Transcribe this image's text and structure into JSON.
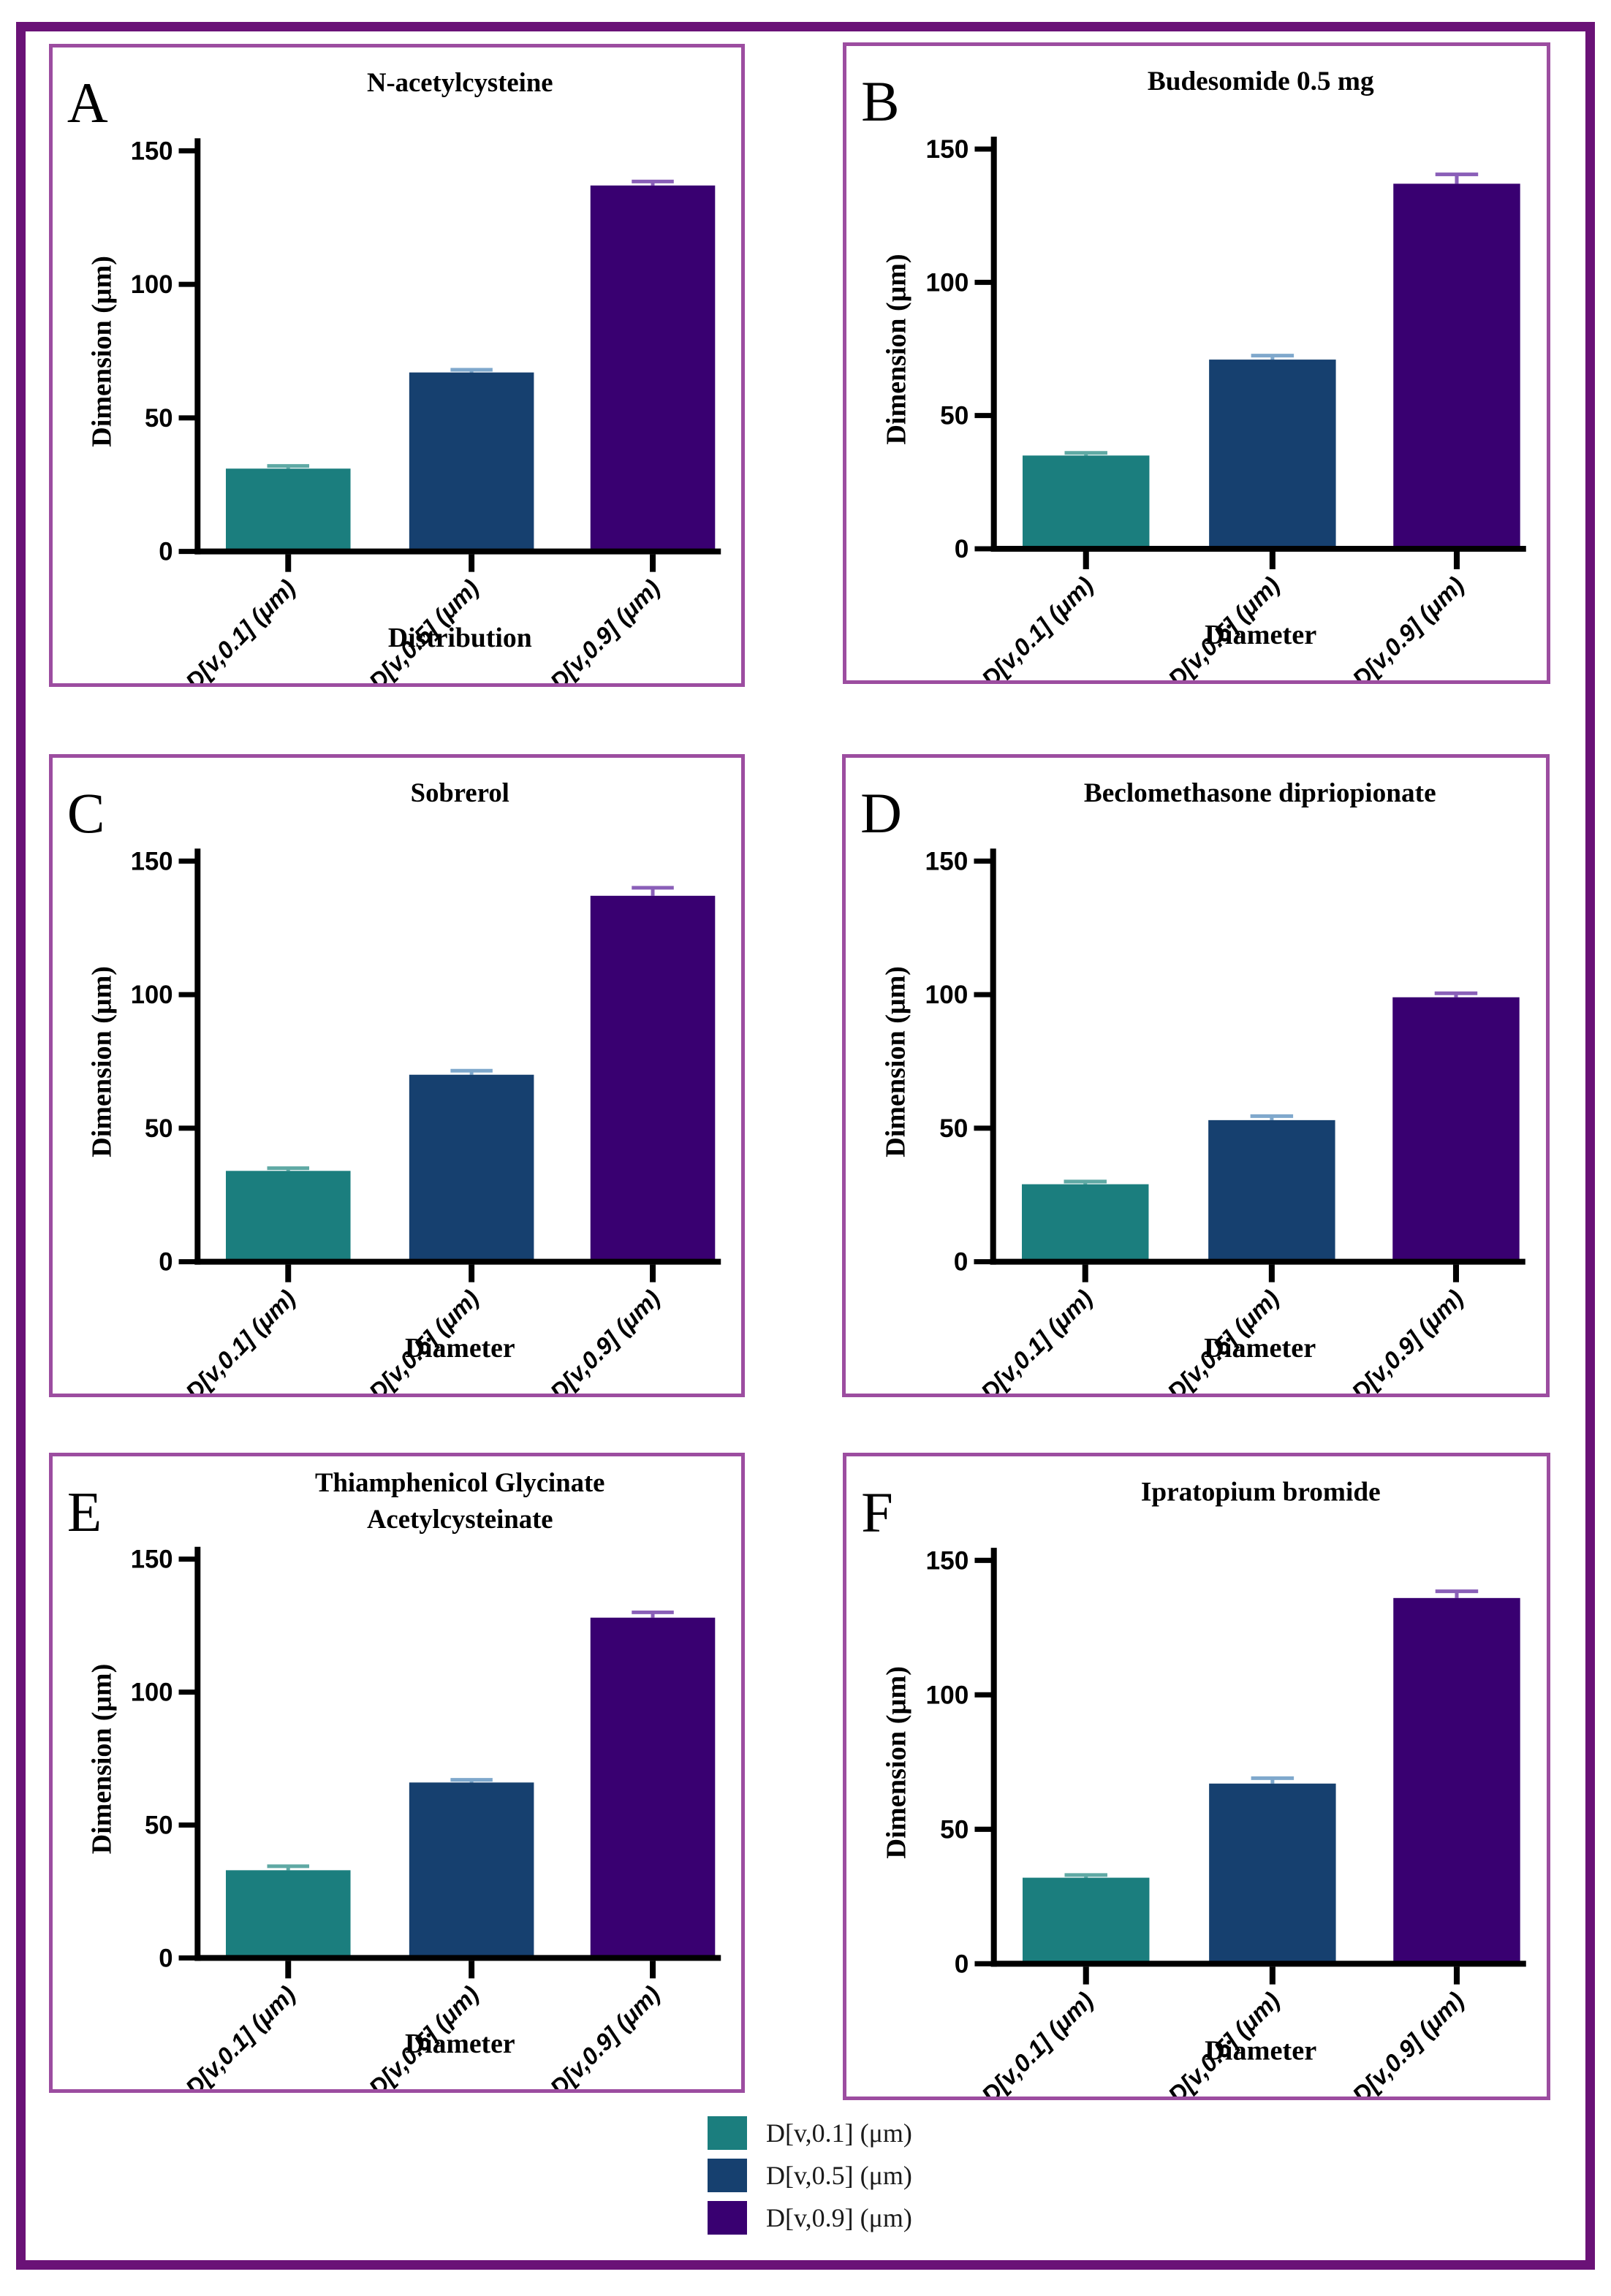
{
  "colors": {
    "outer_border": "#6a1277",
    "panel_border": "#9c4da0",
    "axis": "#000000",
    "teal": "#1b7e7e",
    "navy": "#16406f",
    "purple": "#390071",
    "teal_error": "#5fa9a4",
    "navy_error": "#7fa8cc",
    "purple_error": "#8a5fb8"
  },
  "series": [
    {
      "name": "D[v,0.1] (μm)",
      "color": "#1b7e7e",
      "error_color": "#5fa9a4"
    },
    {
      "name": "D[v,0.5] (μm)",
      "color": "#16406f",
      "error_color": "#7fa8cc"
    },
    {
      "name": "D[v,0.9] (μm)",
      "color": "#390071",
      "error_color": "#8a5fb8"
    }
  ],
  "legend": {
    "items": [
      {
        "label": "D[v,0.1] (μm)",
        "color": "#1b7e7e"
      },
      {
        "label": "D[v,0.5] (μm)",
        "color": "#16406f"
      },
      {
        "label": "D[v,0.9] (μm)",
        "color": "#390071"
      }
    ]
  },
  "chart_data": [
    {
      "type": "bar",
      "panel_letter": "A",
      "title": "N-acetylcysteine",
      "title_lines": [
        "N-acetylcysteine"
      ],
      "xlabel": "Distribution",
      "ylabel": "Dimension (μm)",
      "ylim": [
        0,
        150
      ],
      "yticks": [
        0,
        50,
        100,
        150
      ],
      "categories": [
        "D[v,0.1] (μm)",
        "D[v,0.5] (μm)",
        "D[v,0.9] (μm)"
      ],
      "values": [
        31,
        67,
        137
      ],
      "errors": [
        1,
        1,
        1.5
      ]
    },
    {
      "type": "bar",
      "panel_letter": "B",
      "title": "Budesomide 0.5 mg",
      "title_lines": [
        "Budesomide 0.5 mg"
      ],
      "xlabel": "Diameter",
      "ylabel": "Dimension (μm)",
      "ylim": [
        0,
        150
      ],
      "yticks": [
        0,
        50,
        100,
        150
      ],
      "categories": [
        "D[v,0.1] (μm)",
        "D[v,0.5] (μm)",
        "D[v,0.9] (μm)"
      ],
      "values": [
        35,
        71,
        137
      ],
      "errors": [
        1,
        1.5,
        3.5
      ]
    },
    {
      "type": "bar",
      "panel_letter": "C",
      "title": "Sobrerol",
      "title_lines": [
        "Sobrerol"
      ],
      "xlabel": "Diameter",
      "ylabel": "Dimension (μm)",
      "ylim": [
        0,
        150
      ],
      "yticks": [
        0,
        50,
        100,
        150
      ],
      "categories": [
        "D[v,0.1] (μm)",
        "D[v,0.5] (μm)",
        "D[v,0.9] (μm)"
      ],
      "values": [
        34,
        70,
        137
      ],
      "errors": [
        1,
        1.5,
        3
      ]
    },
    {
      "type": "bar",
      "panel_letter": "D",
      "title": "Beclomethasone dipriopionate",
      "title_lines": [
        "Beclomethasone dipriopionate"
      ],
      "xlabel": "Diameter",
      "ylabel": "Dimension (μm)",
      "ylim": [
        0,
        150
      ],
      "yticks": [
        0,
        50,
        100,
        150
      ],
      "categories": [
        "D[v,0.1] (μm)",
        "D[v,0.5] (μm)",
        "D[v,0.9] (μm)"
      ],
      "values": [
        29,
        53,
        99
      ],
      "errors": [
        1,
        1.5,
        1.5
      ]
    },
    {
      "type": "bar",
      "panel_letter": "E",
      "title": "Thiamphenicol Glycinate Acetylcysteinate",
      "title_lines": [
        "Thiamphenicol Glycinate",
        "Acetylcysteinate"
      ],
      "xlabel": "Diameter",
      "ylabel": "Dimension (μm)",
      "ylim": [
        0,
        150
      ],
      "yticks": [
        0,
        50,
        100,
        150
      ],
      "categories": [
        "D[v,0.1] (μm)",
        "D[v,0.5] (μm)",
        "D[v,0.9] (μm)"
      ],
      "values": [
        33,
        66,
        128
      ],
      "errors": [
        1.5,
        1,
        2
      ]
    },
    {
      "type": "bar",
      "panel_letter": "F",
      "title": "Ipratopium bromide",
      "title_lines": [
        "Ipratopium bromide"
      ],
      "xlabel": "Diameter",
      "ylabel": "Dimension (μm)",
      "ylim": [
        0,
        150
      ],
      "yticks": [
        0,
        50,
        100,
        150
      ],
      "categories": [
        "D[v,0.1] (μm)",
        "D[v,0.5] (μm)",
        "D[v,0.9] (μm)"
      ],
      "values": [
        32,
        67,
        136
      ],
      "errors": [
        1,
        2,
        2.5
      ]
    }
  ]
}
